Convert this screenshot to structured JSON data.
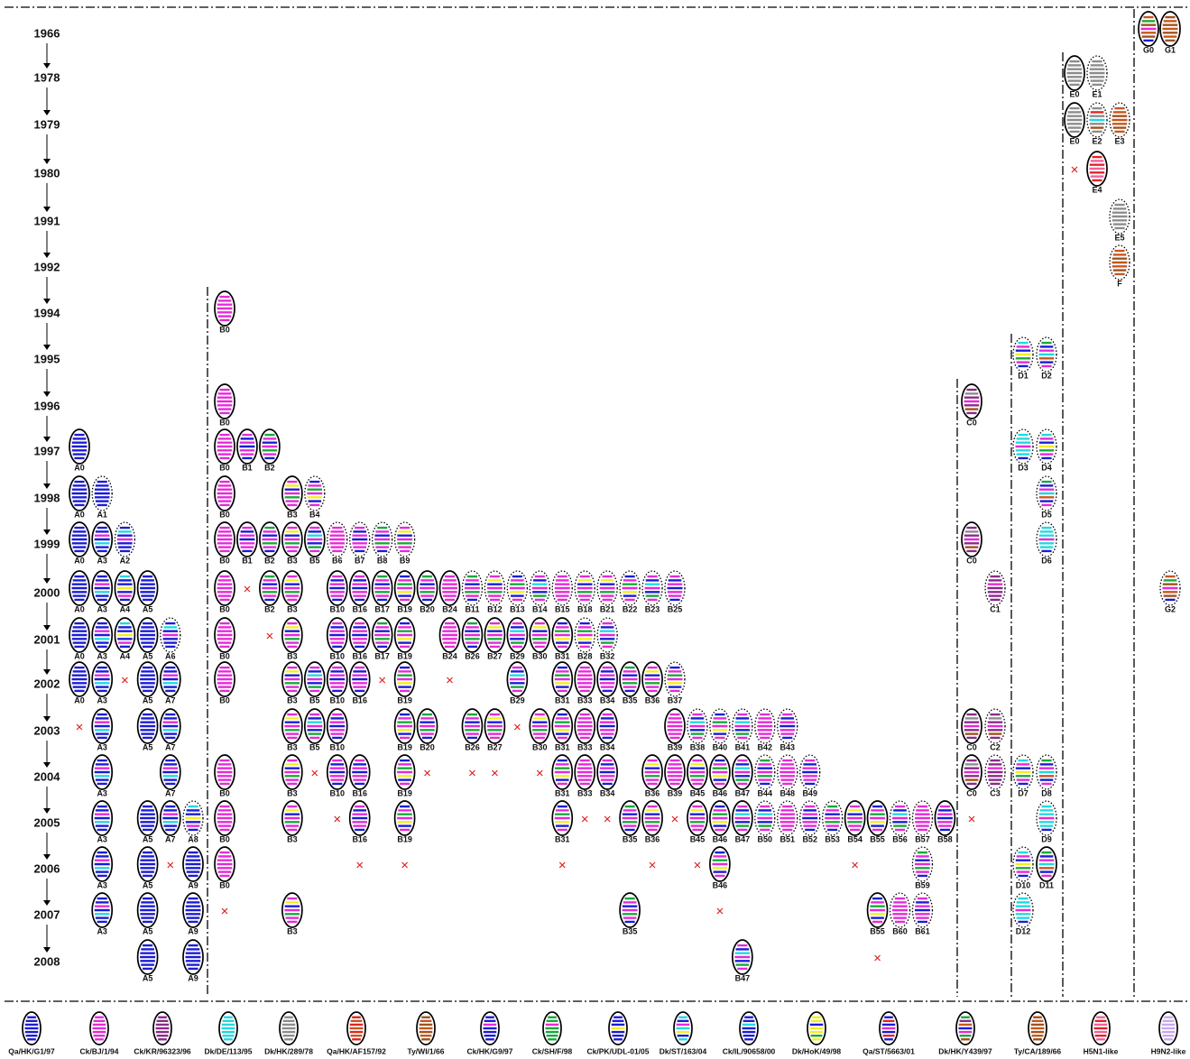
{
  "rows": [
    {
      "year": "1966",
      "nodes": [
        "G0",
        "G1"
      ]
    },
    {
      "year": "1978",
      "nodes": [
        "E0",
        "E1"
      ]
    },
    {
      "year": "1979",
      "nodes": [
        "E0",
        "E2",
        "E3"
      ]
    },
    {
      "year": "1980",
      "nodes": [
        "E4"
      ]
    },
    {
      "year": "1991",
      "nodes": [
        "E5"
      ]
    },
    {
      "year": "1992",
      "nodes": [
        "F"
      ]
    },
    {
      "year": "1994",
      "nodes": [
        "B0"
      ]
    },
    {
      "year": "1995",
      "nodes": [
        "D1",
        "D2"
      ]
    },
    {
      "year": "1996",
      "nodes": [
        "B0",
        "C0"
      ]
    },
    {
      "year": "1997",
      "nodes": [
        "A0",
        "B0",
        "B1",
        "B2",
        "D3",
        "D4"
      ]
    },
    {
      "year": "1998",
      "nodes": [
        "A0",
        "A1",
        "B0",
        "B3",
        "B4",
        "D5"
      ]
    },
    {
      "year": "1999",
      "nodes": [
        "A0",
        "A3",
        "A2",
        "B0",
        "B1",
        "B2",
        "B3",
        "B5",
        "B6",
        "B7",
        "B8",
        "B9",
        "C0",
        "D6"
      ]
    },
    {
      "year": "2000",
      "nodes": [
        "A0",
        "A3",
        "A4",
        "A5",
        "B0",
        "B2",
        "B3",
        "B10",
        "B16",
        "B17",
        "B19",
        "B20",
        "B24",
        "B11",
        "B12",
        "B13",
        "B14",
        "B15",
        "B18",
        "B21",
        "B22",
        "B23",
        "B25",
        "C1",
        "G2"
      ]
    },
    {
      "year": "2001",
      "nodes": [
        "A0",
        "A3",
        "A4",
        "A5",
        "A6",
        "B0",
        "B3",
        "B10",
        "B16",
        "B17",
        "B19",
        "B24",
        "B26",
        "B27",
        "B29",
        "B30",
        "B31",
        "B28",
        "B32"
      ]
    },
    {
      "year": "2002",
      "nodes": [
        "A0",
        "A3",
        "A5",
        "A7",
        "B0",
        "B3",
        "B5",
        "B10",
        "B16",
        "B19",
        "B29",
        "B31",
        "B33",
        "B34",
        "B35",
        "B36",
        "B37"
      ]
    },
    {
      "year": "2003",
      "nodes": [
        "A3",
        "A5",
        "A7",
        "B3",
        "B5",
        "B10",
        "B19",
        "B20",
        "B26",
        "B27",
        "B30",
        "B31",
        "B33",
        "B34",
        "B39",
        "B38",
        "B40",
        "B41",
        "B42",
        "B43",
        "C0",
        "C2"
      ]
    },
    {
      "year": "2004",
      "nodes": [
        "A3",
        "A7",
        "B0",
        "B3",
        "B10",
        "B16",
        "B19",
        "B31",
        "B33",
        "B34",
        "B36",
        "B39",
        "B45",
        "B46",
        "B47",
        "B44",
        "B48",
        "B49",
        "C0",
        "C3",
        "D7",
        "D8"
      ]
    },
    {
      "year": "2005",
      "nodes": [
        "A3",
        "A5",
        "A7",
        "A8",
        "B0",
        "B3",
        "B16",
        "B19",
        "B31",
        "B35",
        "B36",
        "B45",
        "B46",
        "B47",
        "B50",
        "B51",
        "B52",
        "B53",
        "B54",
        "B55",
        "B56",
        "B57",
        "B58",
        "D9"
      ]
    },
    {
      "year": "2006",
      "nodes": [
        "A3",
        "A5",
        "A9",
        "B0",
        "B46",
        "B59",
        "D10",
        "D11"
      ]
    },
    {
      "year": "2007",
      "nodes": [
        "A3",
        "A5",
        "A9",
        "B3",
        "B35",
        "B55",
        "B60",
        "B61",
        "D12"
      ]
    },
    {
      "year": "2008",
      "nodes": [
        "A5",
        "A9",
        "B47"
      ]
    }
  ],
  "legend": [
    "Qa/HK/G1/97",
    "Ck/BJ/1/94",
    "Ck/KR/96323/96",
    "Dk/DE/113/95",
    "Dk/HK/289/78",
    "Qa/HK/AF157/92",
    "Ty/WI/1/66",
    "Ck/HK/G9/97",
    "Ck/SH/F/98",
    "Ck/PK/UDL-01/05",
    "Dk/ST/163/04",
    "Ck/IL/90658/00",
    "Dk/HoK/49/98",
    "Qa/ST/5663/01",
    "Dk/HK/Y439/97",
    "Ty/CA/189/66",
    "H5N1-like",
    "H9N2-like"
  ]
}
